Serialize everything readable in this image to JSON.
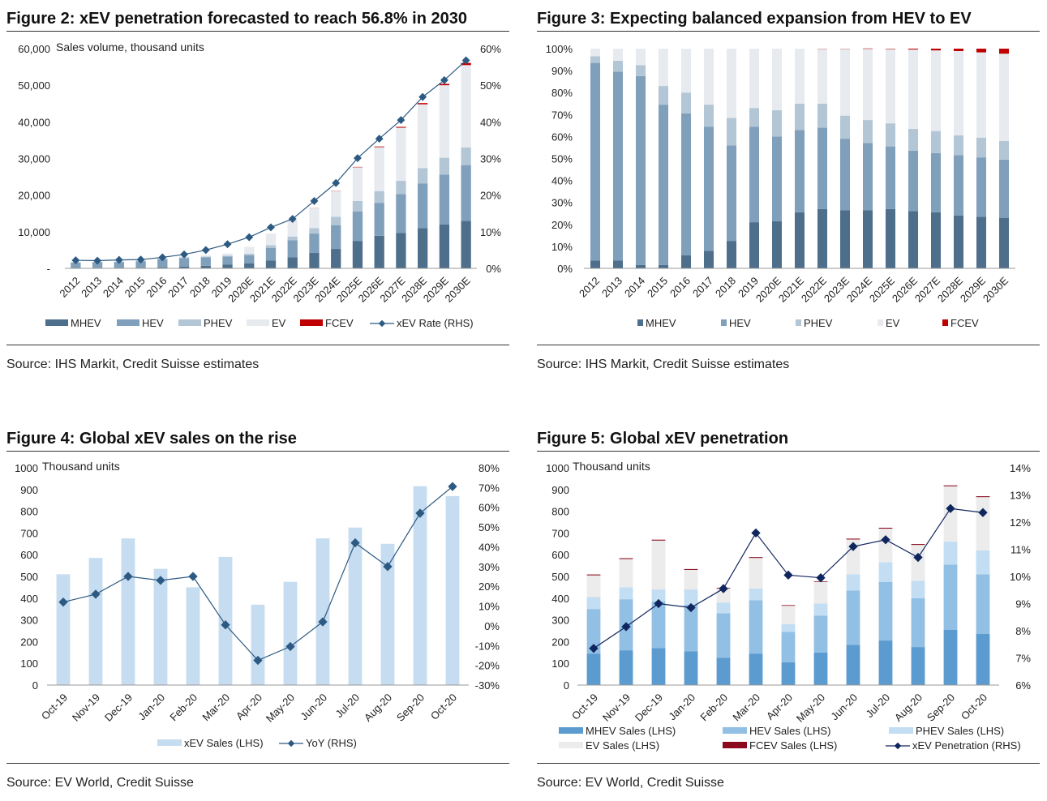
{
  "figures": [
    {
      "title": "Figure 2: xEV penetration forecasted to reach 56.8% in 2030",
      "source": "Source: IHS Markit, Credit Suisse estimates"
    },
    {
      "title": "Figure 3: Expecting balanced expansion from HEV to EV",
      "source": "Source: IHS Markit, Credit Suisse estimates"
    },
    {
      "title": "Figure 4:  Global xEV sales on the rise",
      "source": "Source: EV World, Credit Suisse"
    },
    {
      "title": "Figure 5: Global xEV penetration",
      "source": "Source: EV World, Credit Suisse"
    }
  ],
  "colors": {
    "mhev": "#4e6f8c",
    "hev": "#7f9fbb",
    "phev": "#b3c6d6",
    "ev": "#e7ebf0",
    "fcev": "#c00000",
    "line2": "#2d5a82",
    "bar4": "#c6dcf0",
    "line4": "#2d5a82",
    "mhev5": "#5b9bd0",
    "hev5": "#92bfe4",
    "phev5": "#c3ddf2",
    "ev5": "#ececec",
    "fcev5": "#8b0a1e",
    "line5": "#10265e"
  },
  "chart_data": [
    {
      "type": "bar",
      "stacked": true,
      "categories": [
        "2012",
        "2013",
        "2014",
        "2015",
        "2016",
        "2017",
        "2018",
        "2019",
        "2020E",
        "2021E",
        "2022E",
        "2023E",
        "2024E",
        "2025E",
        "2026E",
        "2027E",
        "2028E",
        "2029E",
        "2030E"
      ],
      "series": [
        {
          "name": "MHEV",
          "values": [
            100,
            100,
            50,
            50,
            300,
            500,
            700,
            1000,
            1400,
            2100,
            3000,
            4200,
            5300,
            7500,
            8900,
            9700,
            11000,
            12000,
            13000
          ]
        },
        {
          "name": "HEV",
          "values": [
            1500,
            1600,
            1700,
            1900,
            2200,
            2300,
            2300,
            2200,
            2200,
            3500,
            4700,
            5300,
            6500,
            8000,
            9000,
            10600,
            12200,
            13600,
            15200
          ]
        },
        {
          "name": "PHEV",
          "values": [
            100,
            100,
            100,
            200,
            200,
            200,
            200,
            300,
            400,
            700,
            1000,
            1500,
            2300,
            2900,
            3200,
            3600,
            4200,
            4600,
            4800
          ]
        },
        {
          "name": "EV",
          "values": [
            40,
            40,
            40,
            70,
            160,
            250,
            400,
            600,
            1800,
            3000,
            4300,
            5400,
            7000,
            9200,
            12000,
            14500,
            17400,
            19800,
            22500
          ]
        },
        {
          "name": "FCEV",
          "values": [
            0,
            0,
            0,
            0,
            0,
            0,
            0,
            0,
            10,
            20,
            30,
            40,
            60,
            100,
            180,
            240,
            330,
            400,
            600
          ]
        }
      ],
      "line": {
        "name": "xEV Rate (RHS)",
        "values": [
          2.2,
          2.1,
          2.3,
          2.4,
          3.0,
          3.8,
          5.0,
          6.6,
          8.5,
          11.2,
          13.5,
          18.4,
          23.3,
          30.1,
          35.4,
          40.5,
          46.8,
          51.4,
          56.8
        ]
      },
      "ylabel_unit": "Sales volume, thousand units",
      "ylim": [
        0,
        60000
      ],
      "y_ticks": [
        "-",
        "10,000",
        "20,000",
        "30,000",
        "40,000",
        "50,000",
        "60,000"
      ],
      "y2lim": [
        0,
        60
      ],
      "y2_ticks": [
        "0%",
        "10%",
        "20%",
        "30%",
        "40%",
        "50%",
        "60%"
      ],
      "legend": [
        "MHEV",
        "HEV",
        "PHEV",
        "EV",
        "FCEV",
        "xEV Rate (RHS)"
      ],
      "legend_position": "bottom"
    },
    {
      "type": "bar",
      "stacked": true,
      "percent": true,
      "categories": [
        "2012",
        "2013",
        "2014",
        "2015",
        "2016",
        "2017",
        "2018",
        "2019",
        "2020E",
        "2021E",
        "2022E",
        "2023E",
        "2024E",
        "2025E",
        "2026E",
        "2027E",
        "2028E",
        "2029E",
        "2030E"
      ],
      "series": [
        {
          "name": "MHEV",
          "values": [
            3.5,
            3.5,
            1.5,
            1.5,
            6,
            8,
            12.5,
            21,
            21.5,
            25.5,
            27,
            26.5,
            26.5,
            27,
            26,
            25.5,
            24,
            23.5,
            23
          ]
        },
        {
          "name": "HEV",
          "values": [
            90,
            86,
            86,
            73,
            64.5,
            56.5,
            43.5,
            43.5,
            38.5,
            37.5,
            37,
            32.5,
            30.5,
            28.5,
            27.5,
            27,
            27.5,
            27,
            26.5
          ]
        },
        {
          "name": "PHEV",
          "values": [
            3,
            5,
            5,
            8.5,
            9.5,
            10,
            12.5,
            8.5,
            12,
            12,
            11,
            10.5,
            10.5,
            10.5,
            10,
            10,
            9,
            9,
            8.5
          ]
        },
        {
          "name": "EV",
          "values": [
            3.5,
            5.5,
            7.5,
            17,
            20,
            25.5,
            31.5,
            27,
            28,
            25,
            24.9,
            30.4,
            32.4,
            33.8,
            36.1,
            36.7,
            38.4,
            38.8,
            39.7
          ]
        },
        {
          "name": "FCEV",
          "values": [
            0,
            0,
            0,
            0,
            0,
            0,
            0,
            0,
            0,
            0,
            0.1,
            0.1,
            0.2,
            0.2,
            0.4,
            0.8,
            1.1,
            1.7,
            2.3
          ]
        }
      ],
      "ylim": [
        0,
        100
      ],
      "y_ticks": [
        "0%",
        "10%",
        "20%",
        "30%",
        "40%",
        "50%",
        "60%",
        "70%",
        "80%",
        "90%",
        "100%"
      ],
      "legend": [
        "MHEV",
        "HEV",
        "PHEV",
        "EV",
        "FCEV"
      ],
      "legend_position": "bottom"
    },
    {
      "type": "bar",
      "categories": [
        "Oct-19",
        "Nov-19",
        "Dec-19",
        "Jan-20",
        "Feb-20",
        "Mar-20",
        "Apr-20",
        "May-20",
        "Jun-20",
        "Jul-20",
        "Aug-20",
        "Sep-20",
        "Oct-20"
      ],
      "series": [
        {
          "name": "xEV Sales (LHS)",
          "values": [
            510,
            585,
            675,
            535,
            450,
            590,
            370,
            475,
            675,
            725,
            650,
            915,
            870
          ]
        }
      ],
      "line": {
        "name": "YoY (RHS)",
        "values": [
          12,
          16,
          25,
          23,
          25,
          0.5,
          -17.5,
          -10.5,
          2,
          42,
          30,
          57,
          70.5
        ]
      },
      "ylabel_unit": "Thousand units",
      "ylim": [
        0,
        1000
      ],
      "y_ticks": [
        "0",
        "100",
        "200",
        "300",
        "400",
        "500",
        "600",
        "700",
        "800",
        "900",
        "1000"
      ],
      "y2lim": [
        -30,
        80
      ],
      "y2_ticks": [
        "-30%",
        "-20%",
        "-10%",
        "0%",
        "10%",
        "20%",
        "30%",
        "40%",
        "50%",
        "60%",
        "70%",
        "80%"
      ],
      "legend": [
        "xEV Sales (LHS)",
        "YoY (RHS)"
      ],
      "legend_position": "bottom"
    },
    {
      "type": "bar",
      "stacked": true,
      "categories": [
        "Oct-19",
        "Nov-19",
        "Dec-19",
        "Jan-20",
        "Feb-20",
        "Mar-20",
        "Apr-20",
        "May-20",
        "Jun-20",
        "Jul-20",
        "Aug-20",
        "Sep-20",
        "Oct-20"
      ],
      "series": [
        {
          "name": "MHEV Sales (LHS)",
          "values": [
            145,
            160,
            170,
            155,
            125,
            145,
            105,
            150,
            185,
            205,
            175,
            255,
            235
          ]
        },
        {
          "name": "HEV Sales (LHS)",
          "values": [
            205,
            235,
            215,
            215,
            205,
            245,
            140,
            170,
            250,
            270,
            225,
            300,
            275
          ]
        },
        {
          "name": "PHEV Sales (LHS)",
          "values": [
            55,
            55,
            55,
            70,
            50,
            55,
            35,
            55,
            75,
            90,
            80,
            105,
            110
          ]
        },
        {
          "name": "EV Sales (LHS)",
          "values": [
            100,
            130,
            225,
            90,
            65,
            140,
            85,
            100,
            160,
            155,
            165,
            255,
            245
          ]
        },
        {
          "name": "FCEV Sales (LHS)",
          "values": [
            4,
            4,
            4,
            4,
            3,
            4,
            3,
            3,
            4,
            4,
            4,
            4,
            4
          ]
        }
      ],
      "line": {
        "name": "xEV Penetration (RHS)",
        "values": [
          7.35,
          8.15,
          9.0,
          8.85,
          9.55,
          11.6,
          10.05,
          9.95,
          11.1,
          11.35,
          10.7,
          12.5,
          12.35
        ]
      },
      "ylabel_unit": "Thousand units",
      "ylim": [
        0,
        1000
      ],
      "y_ticks": [
        "0",
        "100",
        "200",
        "300",
        "400",
        "500",
        "600",
        "700",
        "800",
        "900",
        "1000"
      ],
      "y2lim": [
        6,
        14
      ],
      "y2_ticks": [
        "6%",
        "7%",
        "8%",
        "9%",
        "10%",
        "11%",
        "12%",
        "13%",
        "14%"
      ],
      "legend": [
        "MHEV Sales (LHS)",
        "HEV Sales (LHS)",
        "PHEV Sales (LHS)",
        "EV Sales (LHS)",
        "FCEV Sales (LHS)",
        "xEV Penetration (RHS)"
      ],
      "legend_position": "bottom"
    }
  ]
}
